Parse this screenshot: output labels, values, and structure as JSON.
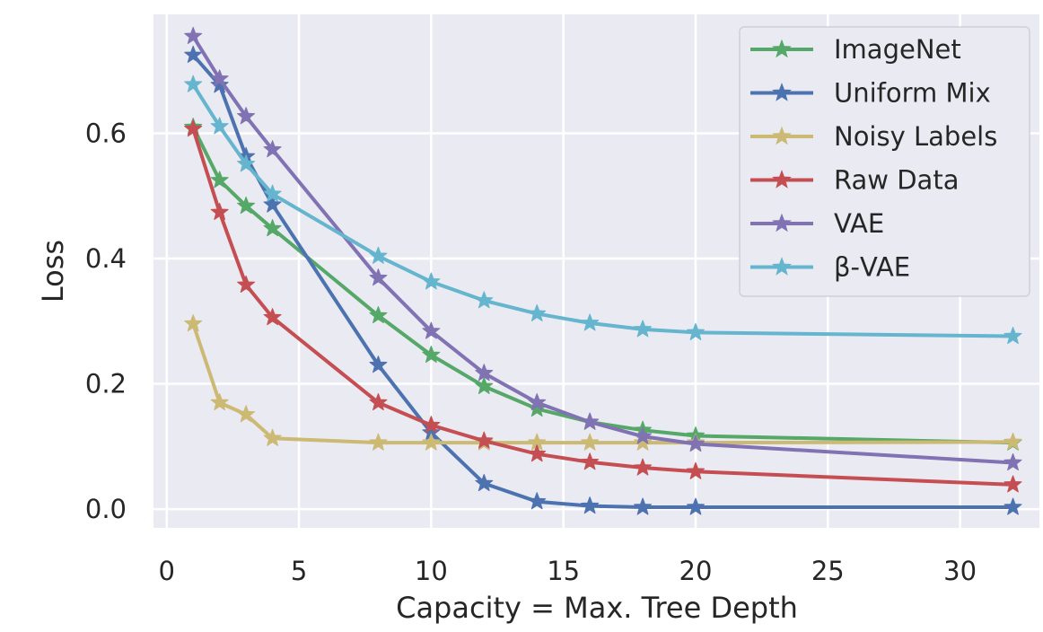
{
  "chart_data": {
    "type": "line",
    "title": "",
    "xlabel": "Capacity = Max. Tree Depth",
    "ylabel": "Loss",
    "xlim": [
      -0.5,
      33.0
    ],
    "ylim": [
      -0.03,
      0.79
    ],
    "xticks": [
      0,
      5,
      10,
      15,
      20,
      25,
      30
    ],
    "yticks": [
      0.0,
      0.2,
      0.4,
      0.6
    ],
    "ytick_labels": [
      "0.0",
      "0.2",
      "0.4",
      "0.6"
    ],
    "grid": true,
    "legend_position": "top-right",
    "marker": "star",
    "series": [
      {
        "name": "ImageNet",
        "color": "#55a868",
        "x": [
          1,
          2,
          3,
          4,
          8,
          10,
          12,
          14,
          16,
          18,
          20,
          32
        ],
        "y": [
          0.61,
          0.525,
          0.484,
          0.448,
          0.309,
          0.246,
          0.196,
          0.16,
          0.139,
          0.126,
          0.117,
          0.106
        ]
      },
      {
        "name": "Uniform Mix",
        "color": "#4c72b0",
        "x": [
          1,
          2,
          3,
          4,
          8,
          10,
          12,
          14,
          16,
          18,
          20,
          32
        ],
        "y": [
          0.725,
          0.677,
          0.563,
          0.486,
          0.23,
          0.122,
          0.041,
          0.012,
          0.005,
          0.003,
          0.003,
          0.003
        ]
      },
      {
        "name": "Noisy Labels",
        "color": "#ccb974",
        "x": [
          1,
          2,
          3,
          4,
          8,
          10,
          12,
          14,
          16,
          18,
          20,
          32
        ],
        "y": [
          0.296,
          0.17,
          0.151,
          0.113,
          0.106,
          0.106,
          0.106,
          0.106,
          0.106,
          0.106,
          0.106,
          0.107
        ]
      },
      {
        "name": "Raw Data",
        "color": "#c44e52",
        "x": [
          1,
          2,
          3,
          4,
          8,
          10,
          12,
          14,
          16,
          18,
          20,
          32
        ],
        "y": [
          0.607,
          0.474,
          0.358,
          0.306,
          0.17,
          0.134,
          0.109,
          0.088,
          0.075,
          0.066,
          0.06,
          0.039
        ]
      },
      {
        "name": "VAE",
        "color": "#8172b3",
        "x": [
          1,
          2,
          3,
          4,
          8,
          10,
          12,
          14,
          16,
          18,
          20,
          32
        ],
        "y": [
          0.755,
          0.687,
          0.627,
          0.574,
          0.369,
          0.284,
          0.217,
          0.17,
          0.139,
          0.116,
          0.104,
          0.074
        ]
      },
      {
        "name": "β-VAE",
        "color": "#64b5cd",
        "x": [
          1,
          2,
          3,
          4,
          8,
          10,
          12,
          14,
          16,
          18,
          20,
          32
        ],
        "y": [
          0.678,
          0.611,
          0.551,
          0.503,
          0.404,
          0.363,
          0.333,
          0.312,
          0.297,
          0.287,
          0.282,
          0.276
        ]
      }
    ]
  }
}
